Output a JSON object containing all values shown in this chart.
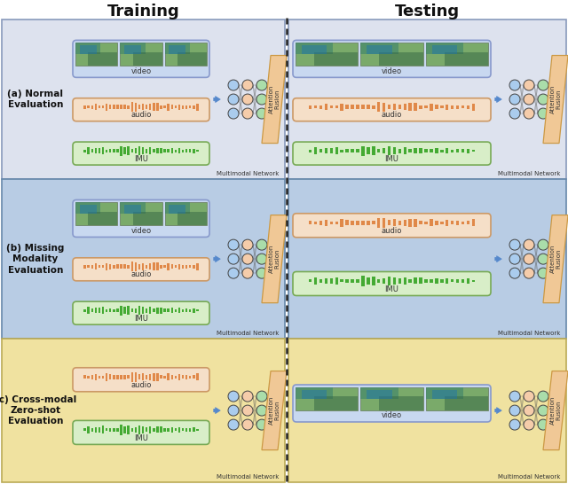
{
  "title_training": "Training",
  "title_testing": "Testing",
  "row_labels": [
    "(a) Normal\nEvaluation",
    "(b) Missing\nModality\nEvaluation",
    "(c) Cross-modal\nZero-shot\nEvaluation"
  ],
  "row_bg_colors": [
    "#dde2ee",
    "#b8cce4",
    "#f0e2a0"
  ],
  "row_border_colors": [
    "#8899bb",
    "#6688aa",
    "#bbaa55"
  ],
  "video_box_color": "#c8d8f0",
  "video_border_color": "#8899cc",
  "audio_box_color": "#f5dfc8",
  "audio_border_color": "#cc9966",
  "imu_box_color": "#d8eec8",
  "imu_border_color": "#77aa55",
  "audio_wave_color": "#e08848",
  "imu_wave_color": "#44aa33",
  "attention_box_color": "#f0c896",
  "attention_border_color": "#cc9944",
  "arrow_color": "#5588cc",
  "dashed_line_color": "#222222",
  "node_col1": "#aaccee",
  "node_col2": "#f5ccaa",
  "node_col3": "#aaddaa",
  "node_edge_color": "#444444",
  "text_color": "#222222",
  "multimodal_text": "Multimodal Network",
  "attention_text": "Attention\nFusion",
  "label_fontsize": 7.5,
  "title_fontsize": 13,
  "row_label_fontsize": 7.5
}
